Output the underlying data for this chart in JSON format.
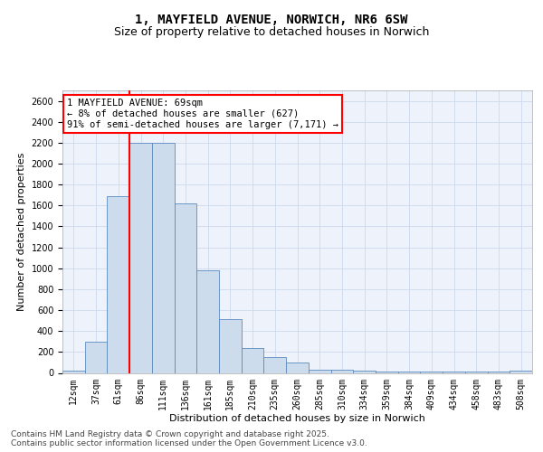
{
  "title_line1": "1, MAYFIELD AVENUE, NORWICH, NR6 6SW",
  "title_line2": "Size of property relative to detached houses in Norwich",
  "xlabel": "Distribution of detached houses by size in Norwich",
  "ylabel": "Number of detached properties",
  "categories": [
    "12sqm",
    "37sqm",
    "61sqm",
    "86sqm",
    "111sqm",
    "136sqm",
    "161sqm",
    "185sqm",
    "210sqm",
    "235sqm",
    "260sqm",
    "285sqm",
    "310sqm",
    "334sqm",
    "359sqm",
    "384sqm",
    "409sqm",
    "434sqm",
    "458sqm",
    "483sqm",
    "508sqm"
  ],
  "bar_values": [
    20,
    300,
    1690,
    2200,
    2200,
    1620,
    980,
    510,
    240,
    150,
    100,
    30,
    30,
    20,
    10,
    10,
    10,
    10,
    10,
    10,
    20
  ],
  "bar_color": "#cddcec",
  "bar_edgecolor": "#5a8abf",
  "vline_index": 2,
  "vline_color": "red",
  "annotation_text": "1 MAYFIELD AVENUE: 69sqm\n← 8% of detached houses are smaller (627)\n91% of semi-detached houses are larger (7,171) →",
  "annotation_box_color": "white",
  "annotation_box_edgecolor": "red",
  "ylim": [
    0,
    2700
  ],
  "grid_color": "#ccd8ec",
  "bg_color": "#eef2fb",
  "footer_text": "Contains HM Land Registry data © Crown copyright and database right 2025.\nContains public sector information licensed under the Open Government Licence v3.0.",
  "title_fontsize": 10,
  "subtitle_fontsize": 9,
  "axis_label_fontsize": 8,
  "tick_fontsize": 7,
  "annotation_fontsize": 7.5,
  "footer_fontsize": 6.5
}
